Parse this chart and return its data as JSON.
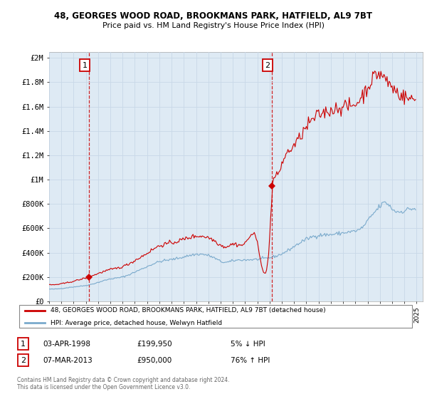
{
  "title": "48, GEORGES WOOD ROAD, BROOKMANS PARK, HATFIELD, AL9 7BT",
  "subtitle": "Price paid vs. HM Land Registry's House Price Index (HPI)",
  "ylabel_ticks": [
    "£0",
    "£200K",
    "£400K",
    "£600K",
    "£800K",
    "£1M",
    "£1.2M",
    "£1.4M",
    "£1.6M",
    "£1.8M",
    "£2M"
  ],
  "ylim": [
    0,
    2000000
  ],
  "xlim_start": 1995.0,
  "xlim_end": 2025.5,
  "sale1_x": 1998.25,
  "sale1_y": 199950,
  "sale1_label": "1",
  "sale1_date": "03-APR-1998",
  "sale1_price": "£199,950",
  "sale1_hpi": "5% ↓ HPI",
  "sale2_x": 2013.17,
  "sale2_y": 950000,
  "sale2_label": "2",
  "sale2_date": "07-MAR-2013",
  "sale2_price": "£950,000",
  "sale2_hpi": "76% ↑ HPI",
  "line_color": "#cc0000",
  "hpi_color": "#7aaacc",
  "vline_color": "#cc0000",
  "legend_line_label": "48, GEORGES WOOD ROAD, BROOKMANS PARK, HATFIELD, AL9 7BT (detached house)",
  "legend_hpi_label": "HPI: Average price, detached house, Welwyn Hatfield",
  "footer": "Contains HM Land Registry data © Crown copyright and database right 2024.\nThis data is licensed under the Open Government Licence v3.0.",
  "grid_color": "#c8d8e8",
  "chart_bg": "#deeaf4",
  "background_color": "#ffffff"
}
